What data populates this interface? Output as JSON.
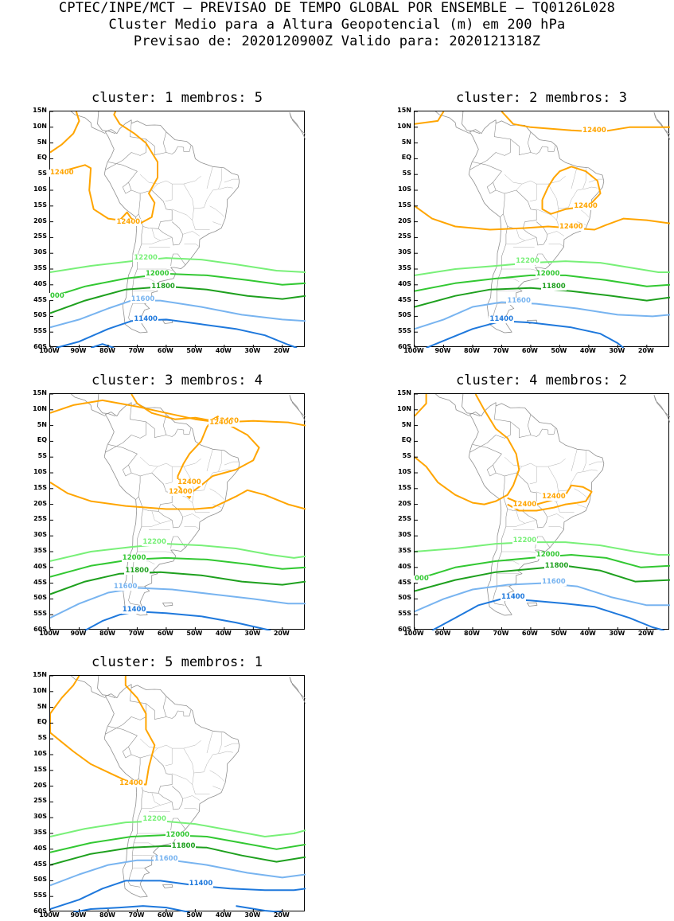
{
  "header": {
    "line1": "CPTEC/INPE/MCT — PREVISAO DE TEMPO GLOBAL POR ENSEMBLE — TQ0126L028",
    "line2": "Cluster Medio para a Altura Geopotencial (m) em 200 hPa",
    "line3": "Previsao de: 2020120900Z   Valido para: 2020121318Z"
  },
  "axes": {
    "lat_labels": [
      "15N",
      "10N",
      "5N",
      "EQ",
      "5S",
      "10S",
      "15S",
      "20S",
      "25S",
      "30S",
      "35S",
      "40S",
      "45S",
      "50S",
      "55S",
      "60S"
    ],
    "lon_labels": [
      "100W",
      "90W",
      "80W",
      "70W",
      "60W",
      "50W",
      "40W",
      "30W",
      "20W"
    ]
  },
  "colors": {
    "12400": "#ffa500",
    "12200": "#78f078",
    "12000": "#32c832",
    "11800": "#1ea01e",
    "11600": "#78b4f0",
    "11400": "#1e78dc",
    "coast": "#909090"
  },
  "panels": [
    {
      "title": "cluster: 1   membros: 5",
      "contours": [
        {
          "level": "12400",
          "labels": [
            "12400",
            "12400"
          ]
        },
        {
          "level": "12200",
          "labels": [
            "12200"
          ]
        },
        {
          "level": "12000",
          "labels": [
            "12000",
            "000"
          ]
        },
        {
          "level": "11800",
          "labels": [
            "11800"
          ]
        },
        {
          "level": "11600",
          "labels": [
            "11600"
          ]
        },
        {
          "level": "11400",
          "labels": [
            "11400"
          ]
        }
      ]
    },
    {
      "title": "cluster: 2   membros: 3",
      "contours": [
        {
          "level": "12400",
          "labels": [
            "12400",
            "12400",
            "12400"
          ]
        },
        {
          "level": "12200",
          "labels": [
            "12200"
          ]
        },
        {
          "level": "12000",
          "labels": [
            "12000"
          ]
        },
        {
          "level": "11800",
          "labels": [
            "11800"
          ]
        },
        {
          "level": "11600",
          "labels": [
            "11600"
          ]
        },
        {
          "level": "11400",
          "labels": [
            "11400"
          ]
        }
      ]
    },
    {
      "title": "cluster: 3   membros: 4",
      "contours": [
        {
          "level": "12400",
          "labels": [
            "12400",
            "12400",
            "12400",
            "12400"
          ]
        },
        {
          "level": "12200",
          "labels": [
            "12200"
          ]
        },
        {
          "level": "12000",
          "labels": [
            "12000"
          ]
        },
        {
          "level": "11800",
          "labels": [
            "11800"
          ]
        },
        {
          "level": "11600",
          "labels": [
            "11600"
          ]
        },
        {
          "level": "11400",
          "labels": [
            "11400"
          ]
        }
      ]
    },
    {
      "title": "cluster: 4   membros: 2",
      "contours": [
        {
          "level": "12400",
          "labels": [
            "12400",
            "12400"
          ]
        },
        {
          "level": "12200",
          "labels": [
            "12200"
          ]
        },
        {
          "level": "12000",
          "labels": [
            "12000",
            "000"
          ]
        },
        {
          "level": "11800",
          "labels": [
            "11800"
          ]
        },
        {
          "level": "11600",
          "labels": [
            "11600"
          ]
        },
        {
          "level": "11400",
          "labels": [
            "11400"
          ]
        }
      ]
    },
    {
      "title": "cluster: 5   membros: 1",
      "contours": [
        {
          "level": "12400",
          "labels": [
            "12400"
          ]
        },
        {
          "level": "12200",
          "labels": [
            "12200"
          ]
        },
        {
          "level": "12000",
          "labels": [
            "12000"
          ]
        },
        {
          "level": "11800",
          "labels": [
            "11800"
          ]
        },
        {
          "level": "11600",
          "labels": [
            "11600"
          ]
        },
        {
          "level": "11400",
          "labels": [
            "11400"
          ]
        }
      ]
    }
  ]
}
